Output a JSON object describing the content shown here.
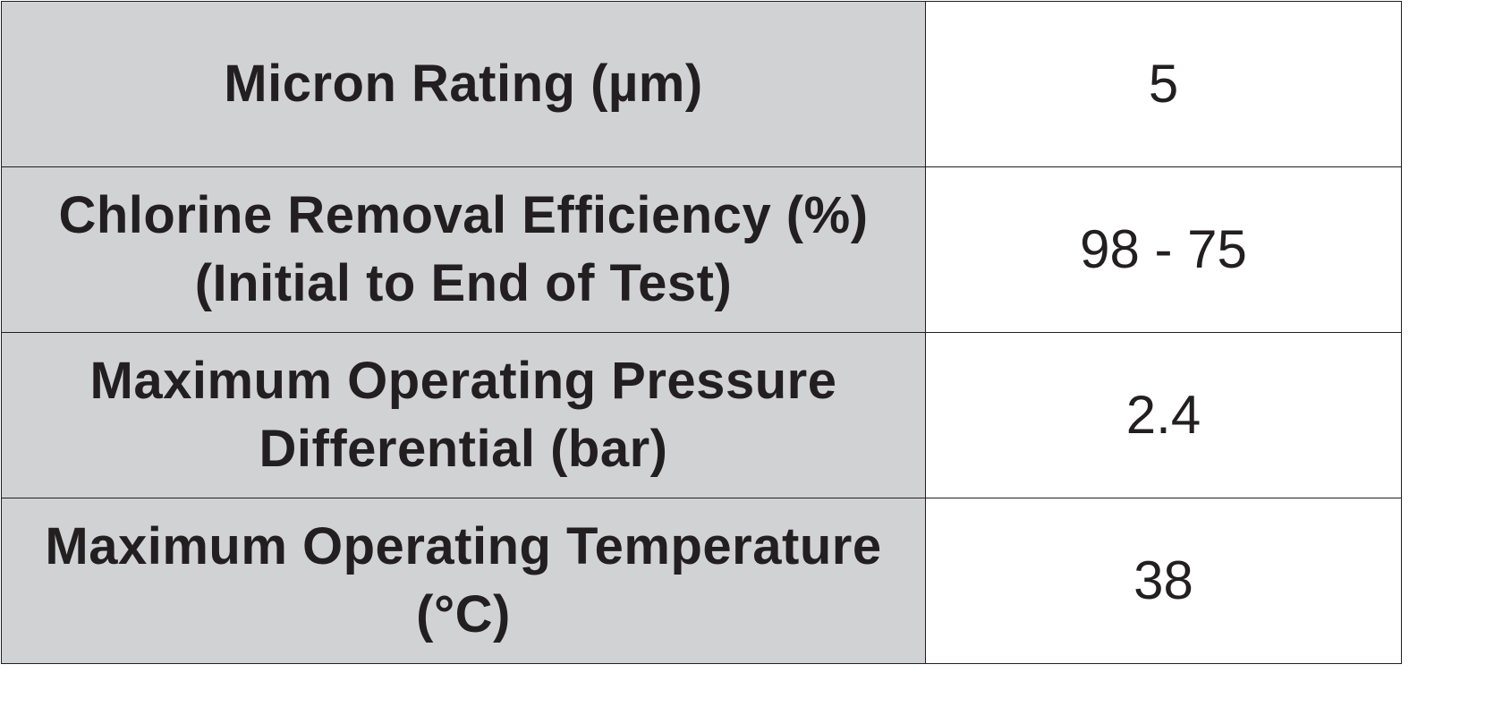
{
  "specs": [
    {
      "label_lines": [
        "Micron Rating (µm)"
      ],
      "value": "5"
    },
    {
      "label_lines": [
        "Chlorine Removal Efficiency (%)",
        "(Initial to End of Test)"
      ],
      "value": "98 - 75"
    },
    {
      "label_lines": [
        "Maximum Operating Pressure",
        "Differential (bar)"
      ],
      "value": "2.4"
    },
    {
      "label_lines": [
        "Maximum Operating Temperature",
        "(°C)"
      ],
      "value": "38"
    }
  ],
  "colors": {
    "label_background": "#d1d2d4",
    "value_background": "#ffffff",
    "text": "#231f20",
    "border": "#231f20"
  }
}
